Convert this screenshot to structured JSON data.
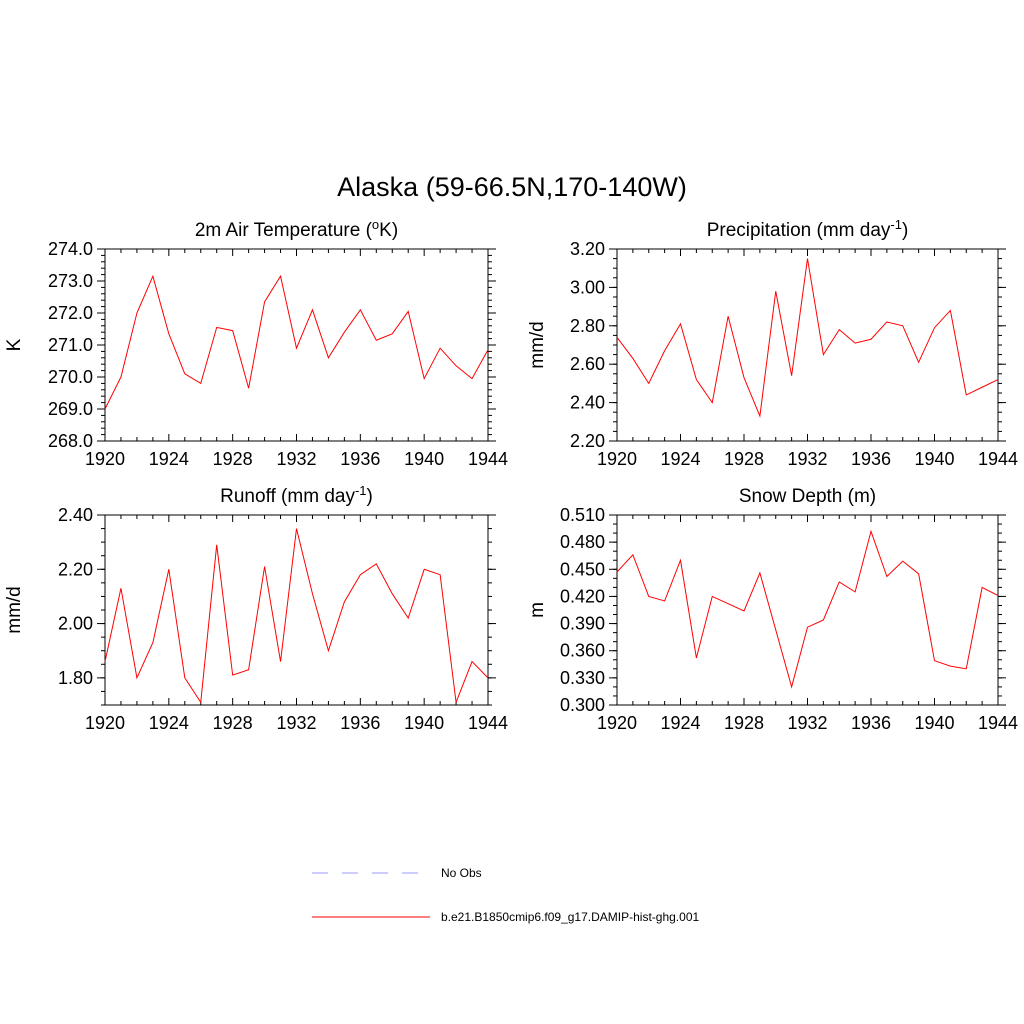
{
  "figure": {
    "title": "Alaska (59-66.5N,170-140W)"
  },
  "legend": {
    "items": [
      {
        "label": "No Obs",
        "color": "#9999ff",
        "style": "dashed"
      },
      {
        "label": "b.e21.B1850cmip6.f09_g17.DAMIP-hist-ghg.001",
        "color": "#ff0000",
        "style": "solid"
      }
    ]
  },
  "chart_data": [
    {
      "type": "line",
      "title": "2m Air Temperature (",
      "title_sup": "o",
      "title_end": "K)",
      "xlabel": "",
      "ylabel": "K",
      "xlim": [
        1920,
        1944
      ],
      "ylim": [
        268.0,
        274.0
      ],
      "xticks": [
        1920,
        1924,
        1928,
        1932,
        1936,
        1940,
        1944
      ],
      "yticks": [
        "268.0",
        "269.0",
        "270.0",
        "271.0",
        "272.0",
        "273.0",
        "274.0"
      ],
      "y_minor_step": 0.2,
      "grid": false,
      "color": "#ff0000",
      "x": [
        1920,
        1921,
        1922,
        1923,
        1924,
        1925,
        1926,
        1927,
        1928,
        1929,
        1930,
        1931,
        1932,
        1933,
        1934,
        1935,
        1936,
        1937,
        1938,
        1939,
        1940,
        1941,
        1942,
        1943,
        1944
      ],
      "values": [
        269.0,
        270.0,
        272.0,
        273.15,
        271.35,
        270.1,
        269.8,
        271.55,
        271.45,
        269.65,
        272.35,
        273.15,
        270.9,
        272.1,
        270.6,
        271.4,
        272.1,
        271.15,
        271.35,
        272.05,
        269.95,
        270.9,
        270.35,
        269.95,
        270.85
      ]
    },
    {
      "type": "line",
      "title": "Precipitation (mm day",
      "title_sup": "-1",
      "title_end": ")",
      "xlabel": "",
      "ylabel": "mm/d",
      "xlim": [
        1920,
        1944
      ],
      "ylim": [
        2.2,
        3.2
      ],
      "xticks": [
        1920,
        1924,
        1928,
        1932,
        1936,
        1940,
        1944
      ],
      "yticks": [
        "2.20",
        "2.40",
        "2.60",
        "2.80",
        "3.00",
        "3.20"
      ],
      "y_minor_step": 0.05,
      "grid": false,
      "color": "#ff0000",
      "x": [
        1920,
        1921,
        1922,
        1923,
        1924,
        1925,
        1926,
        1927,
        1928,
        1929,
        1930,
        1931,
        1932,
        1933,
        1934,
        1935,
        1936,
        1937,
        1938,
        1939,
        1940,
        1941,
        1942,
        1943,
        1944
      ],
      "values": [
        2.74,
        2.63,
        2.5,
        2.67,
        2.81,
        2.52,
        2.4,
        2.85,
        2.53,
        2.33,
        2.98,
        2.54,
        3.15,
        2.65,
        2.78,
        2.71,
        2.73,
        2.82,
        2.8,
        2.61,
        2.79,
        2.88,
        2.44,
        2.48,
        2.52
      ]
    },
    {
      "type": "line",
      "title": "Runoff (mm day",
      "title_sup": "-1",
      "title_end": ")",
      "xlabel": "",
      "ylabel": "mm/d",
      "xlim": [
        1920,
        1944
      ],
      "ylim": [
        1.7,
        2.4
      ],
      "xticks": [
        1920,
        1924,
        1928,
        1932,
        1936,
        1940,
        1944
      ],
      "yticks": [
        "1.80",
        "2.00",
        "2.20",
        "2.40"
      ],
      "y_tick_values": [
        1.8,
        2.0,
        2.2,
        2.4
      ],
      "y_minor_step": 0.05,
      "grid": false,
      "color": "#ff0000",
      "x": [
        1920,
        1921,
        1922,
        1923,
        1924,
        1925,
        1926,
        1927,
        1928,
        1929,
        1930,
        1931,
        1932,
        1933,
        1934,
        1935,
        1936,
        1937,
        1938,
        1939,
        1940,
        1941,
        1942,
        1943,
        1944
      ],
      "values": [
        1.86,
        2.13,
        1.8,
        1.93,
        2.2,
        1.8,
        1.71,
        2.29,
        1.81,
        1.83,
        2.21,
        1.86,
        2.35,
        2.11,
        1.9,
        2.08,
        2.18,
        2.22,
        2.11,
        2.02,
        2.2,
        2.18,
        1.71,
        1.86,
        1.8
      ]
    },
    {
      "type": "line",
      "title": "Snow Depth (m)",
      "title_sup": "",
      "title_end": "",
      "xlabel": "",
      "ylabel": "m",
      "xlim": [
        1920,
        1944
      ],
      "ylim": [
        0.3,
        0.51
      ],
      "xticks": [
        1920,
        1924,
        1928,
        1932,
        1936,
        1940,
        1944
      ],
      "yticks": [
        "0.300",
        "0.330",
        "0.360",
        "0.390",
        "0.420",
        "0.450",
        "0.480",
        "0.510"
      ],
      "y_minor_step": 0.01,
      "grid": false,
      "color": "#ff0000",
      "x": [
        1920,
        1921,
        1922,
        1923,
        1924,
        1925,
        1926,
        1927,
        1928,
        1929,
        1930,
        1931,
        1932,
        1933,
        1934,
        1935,
        1936,
        1937,
        1938,
        1939,
        1940,
        1941,
        1942,
        1943,
        1944
      ],
      "values": [
        0.447,
        0.466,
        0.42,
        0.415,
        0.46,
        0.352,
        0.42,
        0.412,
        0.404,
        0.446,
        0.383,
        0.32,
        0.386,
        0.394,
        0.436,
        0.425,
        0.492,
        0.442,
        0.459,
        0.445,
        0.349,
        0.343,
        0.34,
        0.43,
        0.421
      ]
    }
  ]
}
